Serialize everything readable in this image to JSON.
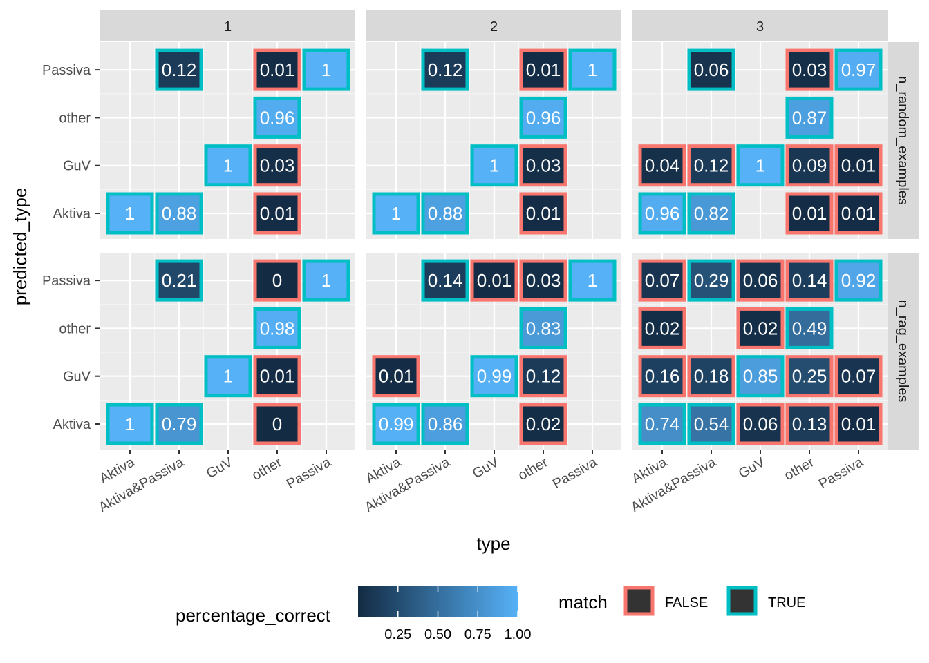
{
  "chart_data": {
    "type": "heatmap",
    "xlabel": "type",
    "ylabel": "predicted_type",
    "x_categories": [
      "Aktiva",
      "Aktiva&Passiva",
      "GuV",
      "other",
      "Passiva"
    ],
    "y_categories": [
      "Aktiva",
      "GuV",
      "other",
      "Passiva"
    ],
    "col_facets": [
      "1",
      "2",
      "3"
    ],
    "row_facets": [
      "n_random_examples",
      "n_rag_examples"
    ],
    "fill_scale": {
      "name": "percentage_correct",
      "low_color": "#132B43",
      "high_color": "#56B1F7",
      "ticks": [
        "0.25",
        "0.50",
        "0.75",
        "1.00"
      ],
      "tick_values": [
        0.25,
        0.5,
        0.75,
        1.0
      ]
    },
    "match_legend": {
      "title": "match",
      "items": [
        {
          "label": "FALSE",
          "color": "#F8766D"
        },
        {
          "label": "TRUE",
          "color": "#00BFC4"
        }
      ]
    },
    "cells": [
      {
        "col": "1",
        "row": "n_random_examples",
        "x": "Aktiva",
        "y": "Aktiva",
        "value": 1,
        "label": "1",
        "match": true
      },
      {
        "col": "1",
        "row": "n_random_examples",
        "x": "Aktiva&Passiva",
        "y": "Aktiva",
        "value": 0.88,
        "label": "0.88",
        "match": true
      },
      {
        "col": "1",
        "row": "n_random_examples",
        "x": "Aktiva&Passiva",
        "y": "Passiva",
        "value": 0.12,
        "label": "0.12",
        "match": true
      },
      {
        "col": "1",
        "row": "n_random_examples",
        "x": "GuV",
        "y": "GuV",
        "value": 1,
        "label": "1",
        "match": true
      },
      {
        "col": "1",
        "row": "n_random_examples",
        "x": "other",
        "y": "Passiva",
        "value": 0.01,
        "label": "0.01",
        "match": false
      },
      {
        "col": "1",
        "row": "n_random_examples",
        "x": "other",
        "y": "other",
        "value": 0.96,
        "label": "0.96",
        "match": true
      },
      {
        "col": "1",
        "row": "n_random_examples",
        "x": "other",
        "y": "GuV",
        "value": 0.03,
        "label": "0.03",
        "match": false
      },
      {
        "col": "1",
        "row": "n_random_examples",
        "x": "other",
        "y": "Aktiva",
        "value": 0.01,
        "label": "0.01",
        "match": false
      },
      {
        "col": "1",
        "row": "n_random_examples",
        "x": "Passiva",
        "y": "Passiva",
        "value": 1,
        "label": "1",
        "match": true
      },
      {
        "col": "2",
        "row": "n_random_examples",
        "x": "Aktiva",
        "y": "Aktiva",
        "value": 1,
        "label": "1",
        "match": true
      },
      {
        "col": "2",
        "row": "n_random_examples",
        "x": "Aktiva&Passiva",
        "y": "Aktiva",
        "value": 0.88,
        "label": "0.88",
        "match": true
      },
      {
        "col": "2",
        "row": "n_random_examples",
        "x": "Aktiva&Passiva",
        "y": "Passiva",
        "value": 0.12,
        "label": "0.12",
        "match": true
      },
      {
        "col": "2",
        "row": "n_random_examples",
        "x": "GuV",
        "y": "GuV",
        "value": 1,
        "label": "1",
        "match": true
      },
      {
        "col": "2",
        "row": "n_random_examples",
        "x": "other",
        "y": "Passiva",
        "value": 0.01,
        "label": "0.01",
        "match": false
      },
      {
        "col": "2",
        "row": "n_random_examples",
        "x": "other",
        "y": "other",
        "value": 0.96,
        "label": "0.96",
        "match": true
      },
      {
        "col": "2",
        "row": "n_random_examples",
        "x": "other",
        "y": "GuV",
        "value": 0.03,
        "label": "0.03",
        "match": false
      },
      {
        "col": "2",
        "row": "n_random_examples",
        "x": "other",
        "y": "Aktiva",
        "value": 0.01,
        "label": "0.01",
        "match": false
      },
      {
        "col": "2",
        "row": "n_random_examples",
        "x": "Passiva",
        "y": "Passiva",
        "value": 1,
        "label": "1",
        "match": true
      },
      {
        "col": "3",
        "row": "n_random_examples",
        "x": "Aktiva",
        "y": "Aktiva",
        "value": 0.96,
        "label": "0.96",
        "match": true
      },
      {
        "col": "3",
        "row": "n_random_examples",
        "x": "Aktiva",
        "y": "GuV",
        "value": 0.04,
        "label": "0.04",
        "match": false
      },
      {
        "col": "3",
        "row": "n_random_examples",
        "x": "Aktiva&Passiva",
        "y": "Aktiva",
        "value": 0.82,
        "label": "0.82",
        "match": true
      },
      {
        "col": "3",
        "row": "n_random_examples",
        "x": "Aktiva&Passiva",
        "y": "GuV",
        "value": 0.12,
        "label": "0.12",
        "match": false
      },
      {
        "col": "3",
        "row": "n_random_examples",
        "x": "Aktiva&Passiva",
        "y": "Passiva",
        "value": 0.06,
        "label": "0.06",
        "match": true
      },
      {
        "col": "3",
        "row": "n_random_examples",
        "x": "GuV",
        "y": "GuV",
        "value": 1,
        "label": "1",
        "match": true
      },
      {
        "col": "3",
        "row": "n_random_examples",
        "x": "other",
        "y": "Passiva",
        "value": 0.03,
        "label": "0.03",
        "match": false
      },
      {
        "col": "3",
        "row": "n_random_examples",
        "x": "other",
        "y": "other",
        "value": 0.87,
        "label": "0.87",
        "match": true
      },
      {
        "col": "3",
        "row": "n_random_examples",
        "x": "other",
        "y": "GuV",
        "value": 0.09,
        "label": "0.09",
        "match": false
      },
      {
        "col": "3",
        "row": "n_random_examples",
        "x": "other",
        "y": "Aktiva",
        "value": 0.01,
        "label": "0.01",
        "match": false
      },
      {
        "col": "3",
        "row": "n_random_examples",
        "x": "Passiva",
        "y": "Passiva",
        "value": 0.97,
        "label": "0.97",
        "match": true
      },
      {
        "col": "3",
        "row": "n_random_examples",
        "x": "Passiva",
        "y": "GuV",
        "value": 0.01,
        "label": "0.01",
        "match": false
      },
      {
        "col": "3",
        "row": "n_random_examples",
        "x": "Passiva",
        "y": "Aktiva",
        "value": 0.01,
        "label": "0.01",
        "match": false
      },
      {
        "col": "1",
        "row": "n_rag_examples",
        "x": "Aktiva",
        "y": "Aktiva",
        "value": 1,
        "label": "1",
        "match": true
      },
      {
        "col": "1",
        "row": "n_rag_examples",
        "x": "Aktiva&Passiva",
        "y": "Aktiva",
        "value": 0.79,
        "label": "0.79",
        "match": true
      },
      {
        "col": "1",
        "row": "n_rag_examples",
        "x": "Aktiva&Passiva",
        "y": "Passiva",
        "value": 0.21,
        "label": "0.21",
        "match": true
      },
      {
        "col": "1",
        "row": "n_rag_examples",
        "x": "GuV",
        "y": "GuV",
        "value": 1,
        "label": "1",
        "match": true
      },
      {
        "col": "1",
        "row": "n_rag_examples",
        "x": "other",
        "y": "Passiva",
        "value": 0,
        "label": "0",
        "match": false
      },
      {
        "col": "1",
        "row": "n_rag_examples",
        "x": "other",
        "y": "other",
        "value": 0.98,
        "label": "0.98",
        "match": true
      },
      {
        "col": "1",
        "row": "n_rag_examples",
        "x": "other",
        "y": "GuV",
        "value": 0.01,
        "label": "0.01",
        "match": false
      },
      {
        "col": "1",
        "row": "n_rag_examples",
        "x": "other",
        "y": "Aktiva",
        "value": 0,
        "label": "0",
        "match": false
      },
      {
        "col": "1",
        "row": "n_rag_examples",
        "x": "Passiva",
        "y": "Passiva",
        "value": 1,
        "label": "1",
        "match": true
      },
      {
        "col": "2",
        "row": "n_rag_examples",
        "x": "Aktiva",
        "y": "Aktiva",
        "value": 0.99,
        "label": "0.99",
        "match": true
      },
      {
        "col": "2",
        "row": "n_rag_examples",
        "x": "Aktiva",
        "y": "GuV",
        "value": 0.01,
        "label": "0.01",
        "match": false
      },
      {
        "col": "2",
        "row": "n_rag_examples",
        "x": "Aktiva&Passiva",
        "y": "Aktiva",
        "value": 0.86,
        "label": "0.86",
        "match": true
      },
      {
        "col": "2",
        "row": "n_rag_examples",
        "x": "Aktiva&Passiva",
        "y": "Passiva",
        "value": 0.14,
        "label": "0.14",
        "match": true
      },
      {
        "col": "2",
        "row": "n_rag_examples",
        "x": "GuV",
        "y": "GuV",
        "value": 0.99,
        "label": "0.99",
        "match": true
      },
      {
        "col": "2",
        "row": "n_rag_examples",
        "x": "GuV",
        "y": "Passiva",
        "value": 0.01,
        "label": "0.01",
        "match": false
      },
      {
        "col": "2",
        "row": "n_rag_examples",
        "x": "other",
        "y": "Passiva",
        "value": 0.03,
        "label": "0.03",
        "match": false
      },
      {
        "col": "2",
        "row": "n_rag_examples",
        "x": "other",
        "y": "other",
        "value": 0.83,
        "label": "0.83",
        "match": true
      },
      {
        "col": "2",
        "row": "n_rag_examples",
        "x": "other",
        "y": "GuV",
        "value": 0.12,
        "label": "0.12",
        "match": false
      },
      {
        "col": "2",
        "row": "n_rag_examples",
        "x": "other",
        "y": "Aktiva",
        "value": 0.02,
        "label": "0.02",
        "match": false
      },
      {
        "col": "2",
        "row": "n_rag_examples",
        "x": "Passiva",
        "y": "Passiva",
        "value": 1,
        "label": "1",
        "match": true
      },
      {
        "col": "3",
        "row": "n_rag_examples",
        "x": "Aktiva",
        "y": "Passiva",
        "value": 0.07,
        "label": "0.07",
        "match": false
      },
      {
        "col": "3",
        "row": "n_rag_examples",
        "x": "Aktiva",
        "y": "other",
        "value": 0.02,
        "label": "0.02",
        "match": false
      },
      {
        "col": "3",
        "row": "n_rag_examples",
        "x": "Aktiva",
        "y": "GuV",
        "value": 0.16,
        "label": "0.16",
        "match": false
      },
      {
        "col": "3",
        "row": "n_rag_examples",
        "x": "Aktiva",
        "y": "Aktiva",
        "value": 0.74,
        "label": "0.74",
        "match": true
      },
      {
        "col": "3",
        "row": "n_rag_examples",
        "x": "Aktiva&Passiva",
        "y": "Passiva",
        "value": 0.29,
        "label": "0.29",
        "match": true
      },
      {
        "col": "3",
        "row": "n_rag_examples",
        "x": "Aktiva&Passiva",
        "y": "GuV",
        "value": 0.18,
        "label": "0.18",
        "match": false
      },
      {
        "col": "3",
        "row": "n_rag_examples",
        "x": "Aktiva&Passiva",
        "y": "Aktiva",
        "value": 0.54,
        "label": "0.54",
        "match": true
      },
      {
        "col": "3",
        "row": "n_rag_examples",
        "x": "GuV",
        "y": "Passiva",
        "value": 0.06,
        "label": "0.06",
        "match": false
      },
      {
        "col": "3",
        "row": "n_rag_examples",
        "x": "GuV",
        "y": "other",
        "value": 0.02,
        "label": "0.02",
        "match": false
      },
      {
        "col": "3",
        "row": "n_rag_examples",
        "x": "GuV",
        "y": "GuV",
        "value": 0.85,
        "label": "0.85",
        "match": true
      },
      {
        "col": "3",
        "row": "n_rag_examples",
        "x": "GuV",
        "y": "Aktiva",
        "value": 0.06,
        "label": "0.06",
        "match": false
      },
      {
        "col": "3",
        "row": "n_rag_examples",
        "x": "other",
        "y": "Passiva",
        "value": 0.14,
        "label": "0.14",
        "match": false
      },
      {
        "col": "3",
        "row": "n_rag_examples",
        "x": "other",
        "y": "other",
        "value": 0.49,
        "label": "0.49",
        "match": true
      },
      {
        "col": "3",
        "row": "n_rag_examples",
        "x": "other",
        "y": "GuV",
        "value": 0.25,
        "label": "0.25",
        "match": false
      },
      {
        "col": "3",
        "row": "n_rag_examples",
        "x": "other",
        "y": "Aktiva",
        "value": 0.13,
        "label": "0.13",
        "match": false
      },
      {
        "col": "3",
        "row": "n_rag_examples",
        "x": "Passiva",
        "y": "Passiva",
        "value": 0.92,
        "label": "0.92",
        "match": true
      },
      {
        "col": "3",
        "row": "n_rag_examples",
        "x": "Passiva",
        "y": "GuV",
        "value": 0.07,
        "label": "0.07",
        "match": false
      },
      {
        "col": "3",
        "row": "n_rag_examples",
        "x": "Passiva",
        "y": "Aktiva",
        "value": 0.01,
        "label": "0.01",
        "match": false
      }
    ]
  }
}
